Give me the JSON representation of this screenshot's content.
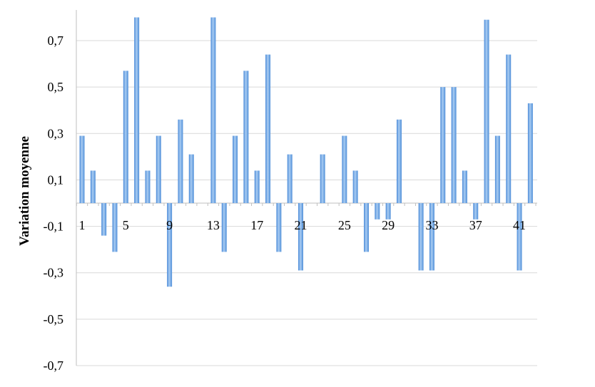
{
  "chart_data": {
    "type": "bar",
    "title": "",
    "xlabel": "",
    "ylabel": "Variation moyenne",
    "ylim": [
      -0.7,
      0.8
    ],
    "yticks": [
      -0.7,
      -0.5,
      -0.3,
      -0.1,
      0.1,
      0.3,
      0.5,
      0.7
    ],
    "ytick_labels": [
      "-0,7",
      "-0,5",
      "-0,3",
      "-0,1",
      "0,1",
      "0,3",
      "0,5",
      "0,7"
    ],
    "grid": true,
    "legend": "none",
    "bar_color": "#5b9bd5",
    "categories": [
      1,
      2,
      3,
      4,
      5,
      6,
      7,
      8,
      9,
      10,
      11,
      12,
      13,
      14,
      15,
      16,
      17,
      18,
      19,
      20,
      21,
      22,
      23,
      24,
      25,
      26,
      27,
      28,
      29,
      30,
      31,
      32,
      33,
      34,
      35,
      36,
      37,
      38,
      39,
      40,
      41,
      42
    ],
    "xtick_labels": [
      "1",
      "5",
      "9",
      "13",
      "17",
      "21",
      "25",
      "29",
      "33",
      "37",
      "41"
    ],
    "xtick_categories": [
      1,
      5,
      9,
      13,
      17,
      21,
      25,
      29,
      33,
      37,
      41
    ],
    "values": [
      0.29,
      0.14,
      -0.14,
      -0.21,
      0.57,
      0.8,
      0.14,
      0.29,
      -0.36,
      0.36,
      0.21,
      0.0,
      0.8,
      -0.21,
      0.29,
      0.57,
      0.14,
      0.64,
      -0.21,
      0.21,
      -0.29,
      0.0,
      0.21,
      0.0,
      0.29,
      0.14,
      -0.21,
      -0.07,
      -0.07,
      0.36,
      0.0,
      -0.29,
      -0.29,
      0.5,
      0.5,
      0.14,
      -0.07,
      0.79,
      0.29,
      0.64,
      -0.29,
      0.43
    ]
  }
}
